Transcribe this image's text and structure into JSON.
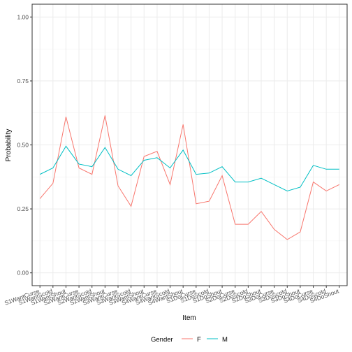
{
  "chart_data": {
    "type": "line",
    "xlabel": "Item",
    "ylabel": "Probability",
    "ylim": [
      0,
      1
    ],
    "yticks": [
      "0.00",
      "0.25",
      "0.50",
      "0.75",
      "1.00"
    ],
    "grid": true,
    "legend_position": "bottom",
    "legend_title": "Gender",
    "categories": [
      "S1WantCurse",
      "S1WantScold",
      "S1WantShout",
      "S2WantCurse",
      "S2WantScold",
      "S2WantShout",
      "S3WantCurse",
      "S3WantScold",
      "S3WantShout",
      "S4WantCurse",
      "S4WantScold",
      "S4WantShout",
      "S1DoCurse",
      "S1DoScold",
      "S1DoShout",
      "S2DoCurse",
      "S2DoScold",
      "S2DoShout",
      "S3DoCurse",
      "S3DoScold",
      "S3DoShout",
      "S4DoCurse",
      "S4DoScold",
      "S4DoShout"
    ],
    "series": [
      {
        "name": "F",
        "color": "#F8766D",
        "values": [
          0.29,
          0.35,
          0.61,
          0.41,
          0.385,
          0.615,
          0.34,
          0.26,
          0.455,
          0.475,
          0.345,
          0.58,
          0.27,
          0.28,
          0.38,
          0.19,
          0.19,
          0.24,
          0.17,
          0.13,
          0.16,
          0.355,
          0.32,
          0.345
        ]
      },
      {
        "name": "M",
        "color": "#00BFC4",
        "values": [
          0.385,
          0.41,
          0.495,
          0.425,
          0.415,
          0.49,
          0.405,
          0.38,
          0.44,
          0.45,
          0.41,
          0.48,
          0.385,
          0.39,
          0.415,
          0.355,
          0.355,
          0.37,
          0.345,
          0.32,
          0.335,
          0.42,
          0.405,
          0.405
        ]
      }
    ]
  }
}
